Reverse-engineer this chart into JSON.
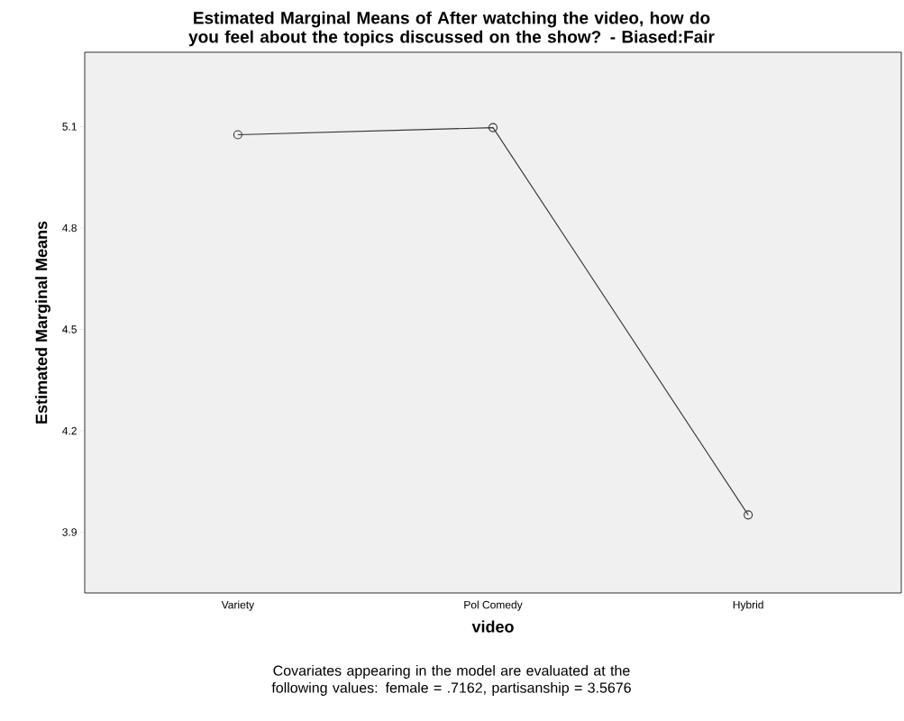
{
  "chart_data": {
    "type": "line",
    "title": "Estimated Marginal Means of After watching the video, how do you feel about the topics discussed on the show? - Biased:Fair",
    "xlabel": "video",
    "ylabel": "Estimated Marginal Means",
    "categories": [
      "Variety",
      "Pol Comedy",
      "Hybrid"
    ],
    "series": [
      {
        "color": "#333333",
        "values": [
          5.076,
          5.097,
          3.951
        ]
      }
    ],
    "ylim": [
      3.72,
      5.32
    ],
    "yticks": [
      3.9,
      4.2,
      4.5,
      4.8,
      5.1
    ],
    "marker": "circle",
    "line_style": "solid",
    "grid": false,
    "annotations": [
      "Covariates appearing in the model are evaluated at the following values: female = .7162, partisanship = 3.5676"
    ]
  }
}
